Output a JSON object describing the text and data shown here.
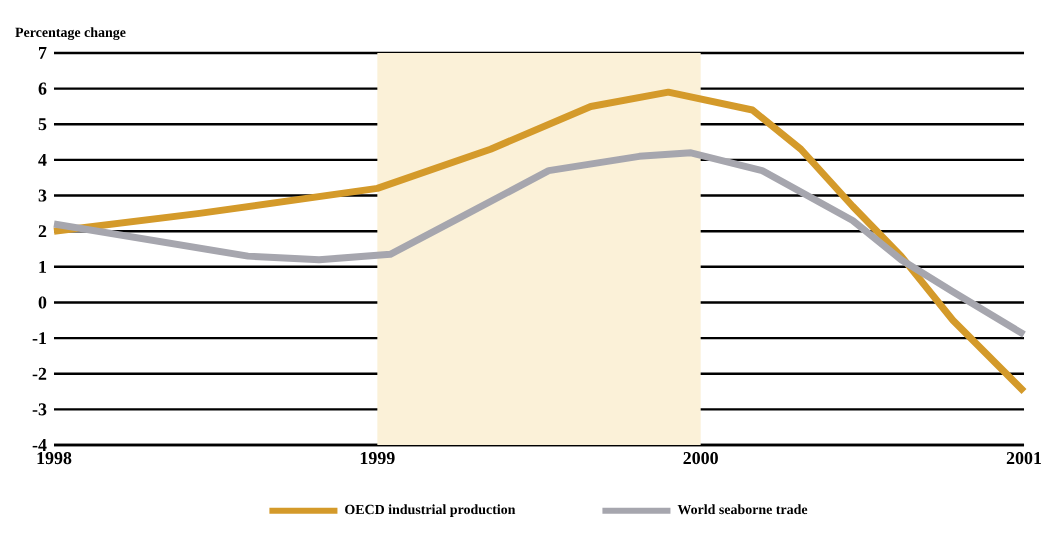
{
  "chart_data": {
    "type": "line",
    "ylabel": "Percentage change",
    "xlim": [
      1998,
      2001
    ],
    "xticks": [
      1998,
      1999,
      2000,
      2001
    ],
    "ylim": [
      -4,
      7
    ],
    "yticks": [
      -4,
      -3,
      -2,
      -1,
      0,
      1,
      2,
      3,
      4,
      5,
      6,
      7
    ],
    "grid": "y",
    "legend": "bottom",
    "line_style": "solid",
    "marker": "none",
    "bands": [
      {
        "axis": "x",
        "from": 1999,
        "to": 2000,
        "color": "#fbf1d8"
      }
    ],
    "series": [
      {
        "name": "OECD industrial production",
        "color": "#d49a2a",
        "x": [
          1998,
          1998.45,
          1999,
          1999.35,
          1999.66,
          1999.9,
          2000.16,
          2000.31,
          2000.47,
          2000.62,
          2000.78,
          2001
        ],
        "values": [
          2.0,
          2.5,
          3.2,
          4.3,
          5.5,
          5.9,
          5.4,
          4.3,
          2.7,
          1.3,
          -0.5,
          -2.5
        ]
      },
      {
        "name": "World seaborne trade",
        "color": "#a6a6ae",
        "x": [
          1998,
          1998.6,
          1998.82,
          1999.04,
          1999.26,
          1999.53,
          1999.81,
          1999.97,
          2000.19,
          2000.47,
          2000.62,
          2000.78,
          2001
        ],
        "values": [
          2.2,
          1.3,
          1.2,
          1.35,
          2.4,
          3.7,
          4.1,
          4.2,
          3.7,
          2.3,
          1.2,
          0.3,
          -0.9
        ]
      }
    ]
  }
}
